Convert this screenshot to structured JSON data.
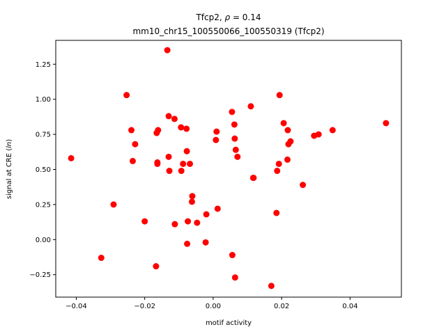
{
  "chart_data": {
    "type": "scatter",
    "title_line1": "Tfcp2, ρ = 0.14",
    "title_line2": "mm10_chr15_100550066_100550319 (Tfcp2)",
    "xlabel": "motif activity",
    "ylabel": "signal at CRE (ln)",
    "xlim": [
      -0.046,
      0.055
    ],
    "ylim": [
      -0.41,
      1.42
    ],
    "x_ticks": [
      -0.04,
      -0.02,
      0.0,
      0.02,
      0.04
    ],
    "x_tick_labels": [
      "−0.04",
      "−0.02",
      "0.00",
      "0.02",
      "0.04"
    ],
    "y_ticks": [
      -0.25,
      0.0,
      0.25,
      0.5,
      0.75,
      1.0,
      1.25
    ],
    "y_tick_labels": [
      "−0.25",
      "0.00",
      "0.25",
      "0.50",
      "0.75",
      "1.00",
      "1.25"
    ],
    "grid": false,
    "marker_color": "#ff0000",
    "points": [
      [
        -0.0415,
        0.58
      ],
      [
        -0.0327,
        -0.13
      ],
      [
        -0.0291,
        0.25
      ],
      [
        -0.0253,
        1.03
      ],
      [
        -0.0239,
        0.78
      ],
      [
        -0.0235,
        0.56
      ],
      [
        -0.0228,
        0.68
      ],
      [
        -0.02,
        0.13
      ],
      [
        -0.0167,
        -0.19
      ],
      [
        -0.0165,
        0.76
      ],
      [
        -0.0163,
        0.55
      ],
      [
        -0.0161,
        0.78
      ],
      [
        -0.0163,
        0.54
      ],
      [
        -0.0134,
        1.35
      ],
      [
        -0.013,
        0.88
      ],
      [
        -0.013,
        0.59
      ],
      [
        -0.0128,
        0.49
      ],
      [
        -0.0113,
        0.86
      ],
      [
        -0.0112,
        0.11
      ],
      [
        -0.0094,
        0.8
      ],
      [
        -0.0093,
        0.49
      ],
      [
        -0.0088,
        0.54
      ],
      [
        -0.0078,
        0.79
      ],
      [
        -0.0077,
        0.63
      ],
      [
        -0.0076,
        -0.03
      ],
      [
        -0.0074,
        0.13
      ],
      [
        -0.0068,
        0.54
      ],
      [
        -0.0061,
        0.31
      ],
      [
        -0.0062,
        0.27
      ],
      [
        -0.0047,
        0.12
      ],
      [
        -0.0022,
        -0.02
      ],
      [
        -0.002,
        0.18
      ],
      [
        0.0008,
        0.71
      ],
      [
        0.001,
        0.77
      ],
      [
        0.0013,
        0.22
      ],
      [
        0.0055,
        0.91
      ],
      [
        0.0056,
        -0.11
      ],
      [
        0.0062,
        0.82
      ],
      [
        0.0063,
        0.72
      ],
      [
        0.0064,
        -0.27
      ],
      [
        0.0066,
        0.64
      ],
      [
        0.0071,
        0.59
      ],
      [
        0.011,
        0.95
      ],
      [
        0.0117,
        0.44
      ],
      [
        0.0118,
        0.44
      ],
      [
        0.017,
        -0.33
      ],
      [
        0.0185,
        0.19
      ],
      [
        0.0187,
        0.49
      ],
      [
        0.0192,
        0.54
      ],
      [
        0.0194,
        1.03
      ],
      [
        0.0206,
        0.83
      ],
      [
        0.0217,
        0.57
      ],
      [
        0.0218,
        0.78
      ],
      [
        0.022,
        0.68
      ],
      [
        0.0226,
        0.7
      ],
      [
        0.0262,
        0.39
      ],
      [
        0.0295,
        0.74
      ],
      [
        0.0308,
        0.75
      ],
      [
        0.0349,
        0.78
      ],
      [
        0.0505,
        0.83
      ]
    ]
  }
}
